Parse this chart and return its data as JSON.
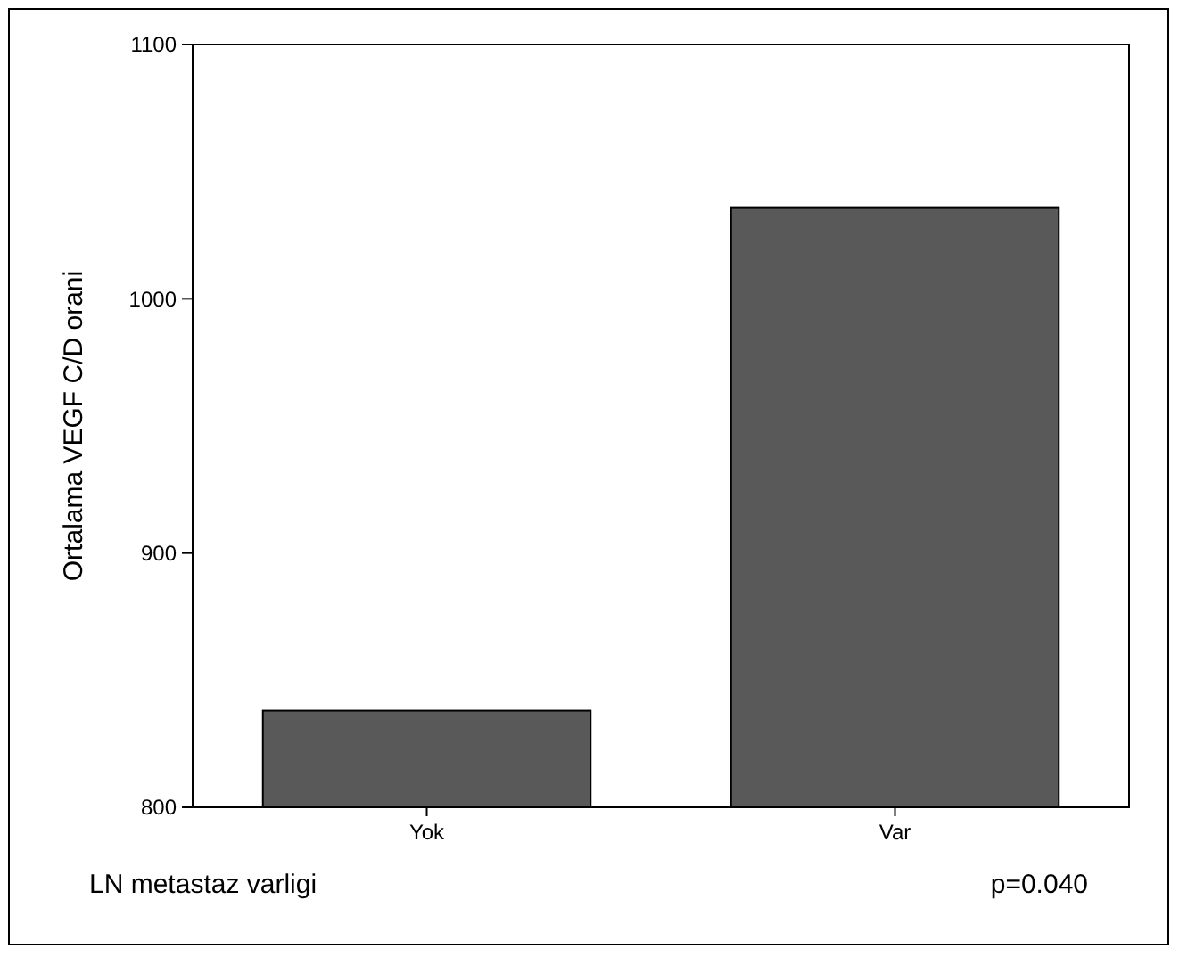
{
  "chart_data": {
    "type": "bar",
    "categories": [
      "Yok",
      "Var"
    ],
    "values": [
      838,
      1036
    ],
    "color": "#595959",
    "ylim": [
      800,
      1100
    ],
    "yticks": [
      800,
      900,
      1000,
      1100
    ],
    "ylabel": "Ortalama VEGF C/D orani",
    "xlabel": "LN metastaz varligi",
    "annotations": [
      "p=0.040"
    ],
    "grid": false
  }
}
